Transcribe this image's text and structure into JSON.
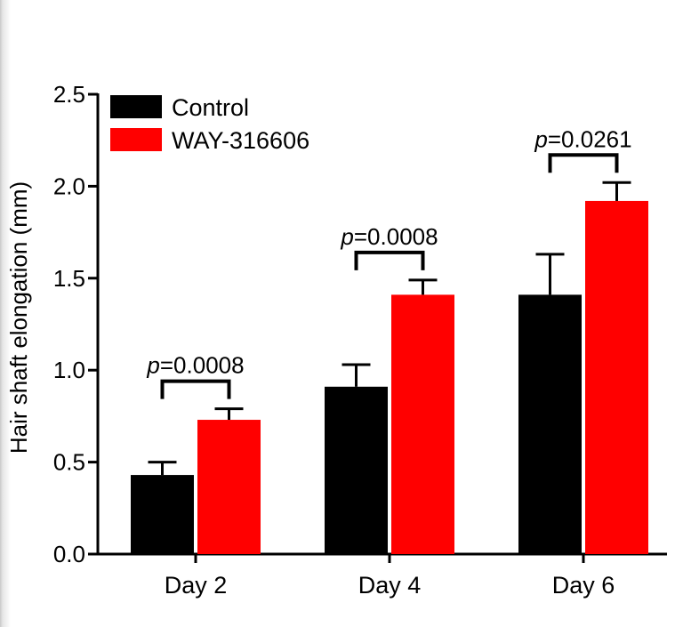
{
  "chart_data": {
    "type": "bar",
    "title": "",
    "xlabel": "",
    "ylabel": "Hair shaft elongation (mm)",
    "ylim": [
      0,
      2.5
    ],
    "yticks": [
      "0.0",
      "0.5",
      "1.0",
      "1.5",
      "2.0",
      "2.5"
    ],
    "categories": [
      "Day 2",
      "Day 4",
      "Day 6"
    ],
    "series": [
      {
        "name": "Control",
        "color": "#000000",
        "values": [
          0.43,
          0.91,
          1.41
        ],
        "errors": [
          0.07,
          0.12,
          0.22
        ]
      },
      {
        "name": "WAY-316606",
        "color": "#ff0000",
        "values": [
          0.73,
          1.41,
          1.92
        ],
        "errors": [
          0.06,
          0.08,
          0.1
        ]
      }
    ],
    "annotations": [
      {
        "category": "Day 2",
        "text": "p=0.0008",
        "p_label": "p",
        "p_value": "=0.0008"
      },
      {
        "category": "Day 4",
        "text": "p=0.0008",
        "p_label": "p",
        "p_value": "=0.0008"
      },
      {
        "category": "Day 6",
        "text": "p=0.0261",
        "p_label": "p",
        "p_value": "=0.0261"
      }
    ],
    "legend_position": "top-left",
    "grid": false
  }
}
